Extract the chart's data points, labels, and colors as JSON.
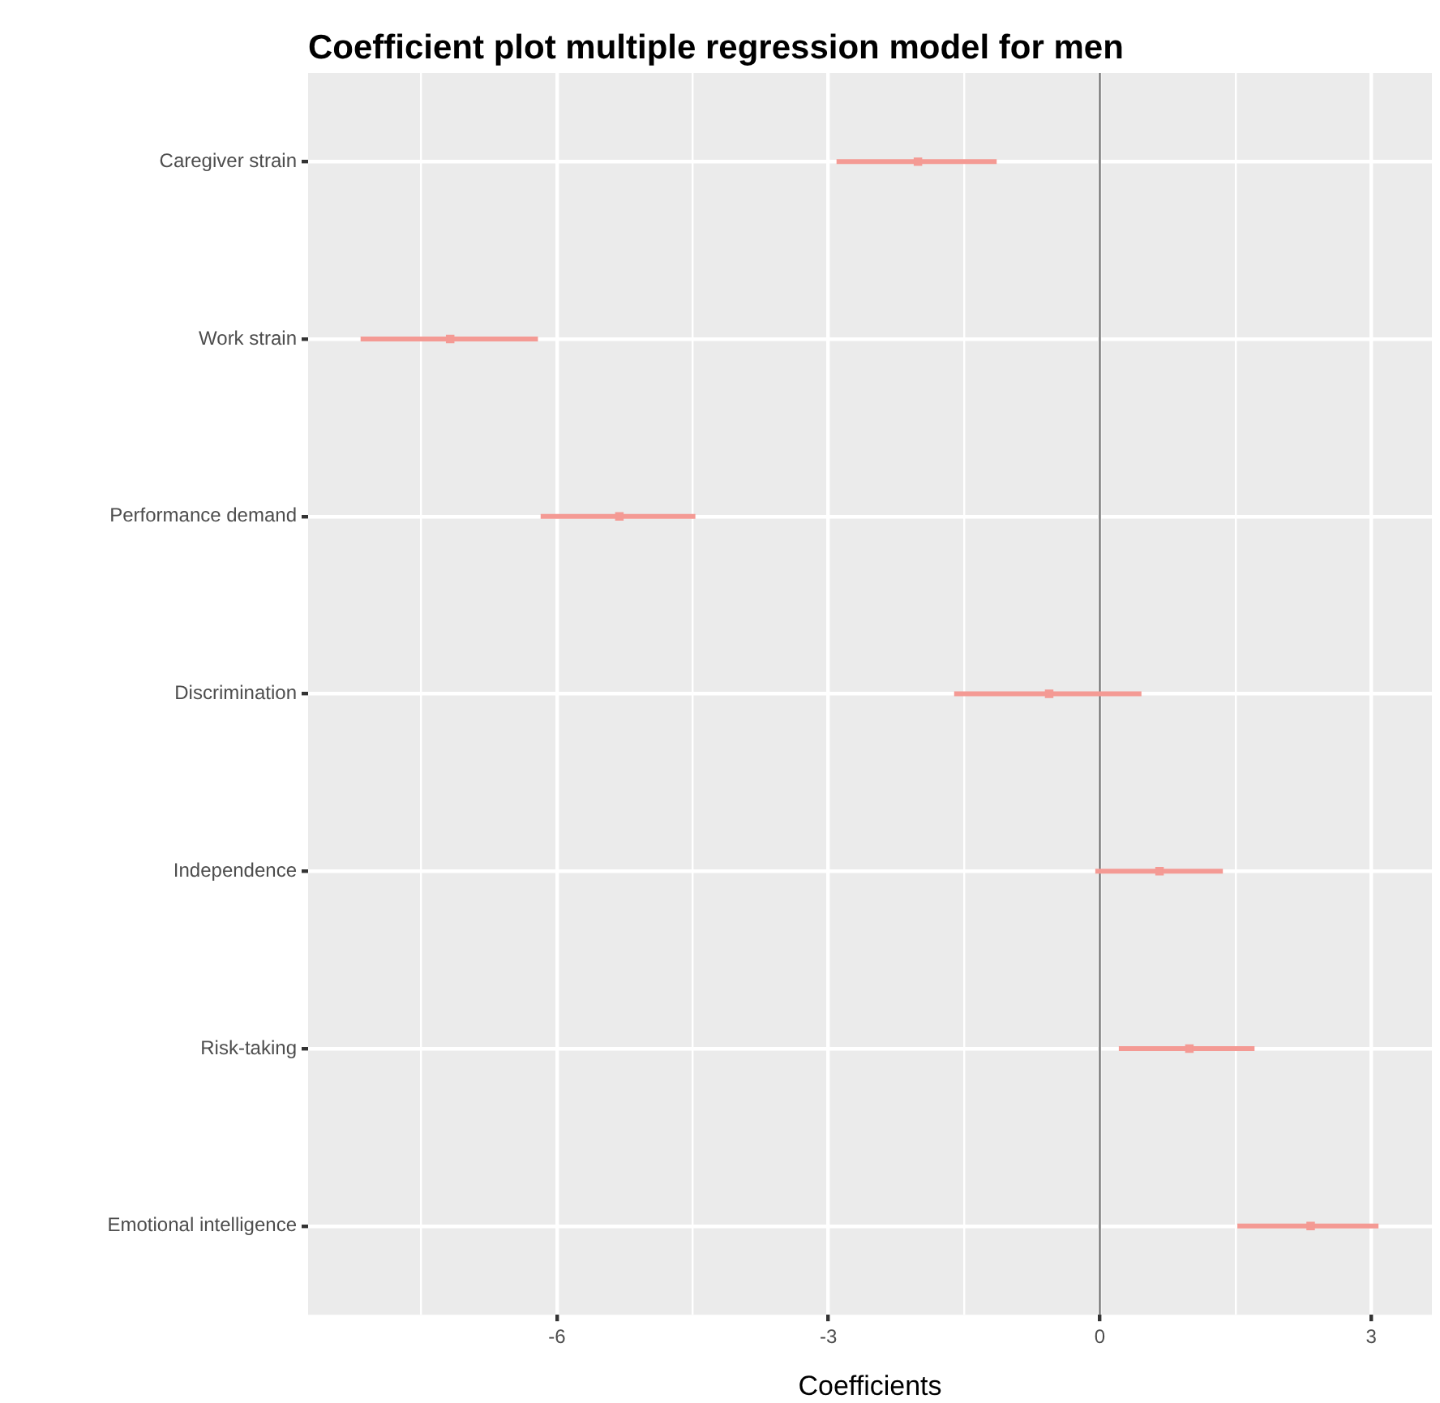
{
  "chart_data": {
    "type": "scatter",
    "title": "Coefficient plot multiple regression model for men",
    "xlabel": "Coefficients",
    "orientation": "horizontal",
    "categories": [
      "Caregiver strain",
      "Work strain",
      "Performance demand",
      "Discrimination",
      "Independence",
      "Risk-taking",
      "Emotional intelligence"
    ],
    "values": [
      -2.01,
      -7.18,
      -5.31,
      -0.56,
      0.66,
      0.99,
      2.33
    ],
    "errors": [
      [
        -2.91,
        -1.14
      ],
      [
        -8.17,
        -6.21
      ],
      [
        -6.18,
        -4.47
      ],
      [
        -1.61,
        0.46
      ],
      [
        -0.05,
        1.36
      ],
      [
        0.21,
        1.71
      ],
      [
        1.52,
        3.08
      ]
    ],
    "color": "#f49a94",
    "xlim": [
      -8.75,
      3.67
    ],
    "xticks": [
      {
        "value": -7.5,
        "label": null
      },
      -6,
      {
        "value": -4.5,
        "label": null
      },
      -3,
      {
        "value": -1.5,
        "label": null
      },
      0,
      {
        "value": 1.5,
        "label": null
      },
      3
    ],
    "ref_lines": [
      {
        "axis": "x",
        "value": 0,
        "color": "#7f7f7f"
      }
    ],
    "grid": true,
    "legend": false,
    "marker": "square"
  }
}
